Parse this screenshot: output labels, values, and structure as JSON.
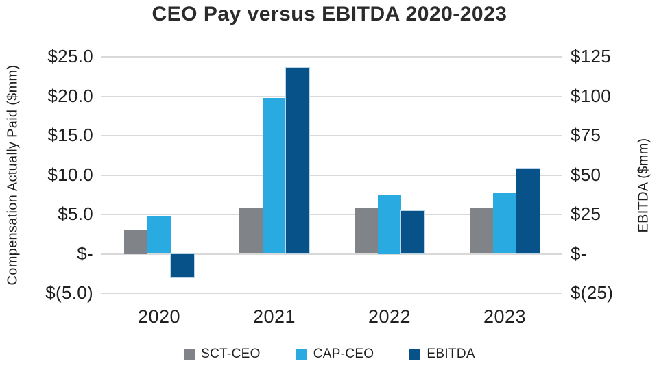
{
  "title": "CEO Pay versus EBITDA 2020-2023",
  "chart_data": {
    "type": "bar",
    "title": "CEO Pay versus EBITDA 2020-2023",
    "categories": [
      "2020",
      "2021",
      "2022",
      "2023"
    ],
    "series": [
      {
        "name": "SCT-CEO",
        "axis": "left",
        "color": "#808488",
        "values": [
          3.0,
          5.9,
          5.9,
          5.8
        ]
      },
      {
        "name": "CAP-CEO",
        "axis": "left",
        "color": "#29ABE2",
        "values": [
          4.7,
          19.8,
          7.5,
          7.8
        ]
      },
      {
        "name": "EBITDA",
        "axis": "right",
        "color": "#08528A",
        "values": [
          -15,
          118,
          27,
          54
        ]
      }
    ],
    "left_axis": {
      "label": "Compensation Actually Paid ($mm)",
      "ticks": [
        "$25.0",
        "$20.0",
        "$15.0",
        "$10.0",
        "$5.0",
        "$-",
        "$(5.0)"
      ],
      "tick_values": [
        25,
        20,
        15,
        10,
        5,
        0,
        -5
      ],
      "min": -5,
      "max": 25
    },
    "right_axis": {
      "label": "EBITDA ($mm)",
      "ticks": [
        "$125",
        "$100",
        "$75",
        "$50",
        "$25",
        "$-",
        "$(25)"
      ],
      "tick_values": [
        125,
        100,
        75,
        50,
        25,
        0,
        -25
      ],
      "min": -25,
      "max": 125
    },
    "grid": true,
    "gridline_color": "#d9d9d9",
    "text_color": "#1f1f1f",
    "legend_position": "bottom"
  }
}
